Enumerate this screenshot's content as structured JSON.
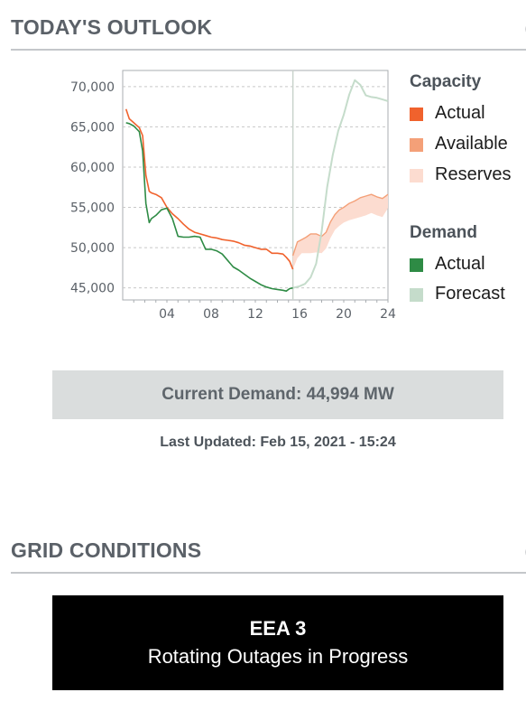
{
  "outlook": {
    "title": "TODAY'S OUTLOOK",
    "current_demand": "Current Demand: 44,994 MW",
    "last_updated": "Last Updated: Feb 15, 2021 - 15:24"
  },
  "grid": {
    "title": "GRID CONDITIONS",
    "level": "EEA 3",
    "status": "Rotating Outages in Progress"
  },
  "legend": {
    "capacity_heading": "Capacity",
    "demand_heading": "Demand",
    "items": [
      {
        "label": "Actual",
        "color": "#f0622d"
      },
      {
        "label": "Available",
        "color": "#f4a078"
      },
      {
        "label": "Reserves",
        "color": "#fcdcd0"
      },
      {
        "label": "Actual",
        "color": "#2e8b45"
      },
      {
        "label": "Forecast",
        "color": "#c5dccb"
      }
    ]
  },
  "chart_data": {
    "type": "line",
    "xlim": [
      0,
      24
    ],
    "ylim": [
      43500,
      72000
    ],
    "x_ticks": [
      4,
      8,
      12,
      16,
      20,
      24
    ],
    "x_tick_labels": [
      "04",
      "08",
      "12",
      "16",
      "20",
      "24"
    ],
    "y_ticks": [
      45000,
      50000,
      55000,
      60000,
      65000,
      70000
    ],
    "y_tick_labels": [
      "45,000",
      "50,000",
      "55,000",
      "60,000",
      "65,000",
      "70,000"
    ],
    "grid": "horizontal dashed",
    "current_hour": 15.4,
    "series": [
      {
        "key": "capacity_actual",
        "color": "#f0622d",
        "x": [
          0.3,
          0.6,
          1.0,
          1.5,
          1.8,
          2.1,
          2.4,
          2.6,
          3.0,
          3.5,
          4.0,
          4.5,
          5.0,
          5.5,
          6.0,
          6.5,
          7.0,
          7.5,
          8.0,
          8.5,
          9.0,
          9.5,
          10.0,
          10.5,
          11.0,
          11.5,
          12.0,
          12.5,
          13.0,
          13.5,
          14.0,
          14.5,
          14.8,
          15.1,
          15.4
        ],
        "values": [
          67200,
          66000,
          65500,
          64900,
          63900,
          59000,
          57000,
          56800,
          56600,
          56200,
          55000,
          54200,
          53600,
          52900,
          52300,
          51900,
          51700,
          51500,
          51300,
          51200,
          51000,
          50900,
          50800,
          50600,
          50300,
          50200,
          50000,
          49800,
          49800,
          49300,
          49300,
          49200,
          48800,
          48300,
          47300
        ]
      },
      {
        "key": "demand_actual",
        "color": "#2e8b45",
        "x": [
          0.3,
          0.6,
          1.0,
          1.5,
          1.8,
          2.1,
          2.4,
          2.6,
          3.0,
          3.5,
          4.0,
          4.5,
          5.0,
          5.5,
          6.0,
          6.5,
          7.0,
          7.5,
          8.0,
          8.5,
          9.0,
          9.5,
          10.0,
          10.5,
          11.0,
          11.5,
          12.0,
          12.5,
          13.0,
          13.5,
          14.0,
          14.5,
          14.8,
          15.1,
          15.4
        ],
        "values": [
          65500,
          65400,
          65100,
          64400,
          62000,
          55500,
          53100,
          53600,
          54000,
          54700,
          54900,
          53600,
          51400,
          51300,
          51300,
          51400,
          51300,
          49800,
          49800,
          49600,
          49200,
          48400,
          47600,
          47200,
          46700,
          46200,
          45800,
          45400,
          45100,
          44900,
          44800,
          44700,
          44600,
          44900,
          44994
        ]
      },
      {
        "key": "demand_forecast",
        "color": "#c5dccb",
        "x": [
          15.4,
          16.0,
          16.5,
          17.0,
          17.5,
          18.0,
          18.5,
          19.0,
          19.5,
          20.0,
          20.5,
          21.0,
          21.5,
          22.0,
          22.5,
          23.0,
          23.5,
          24.0
        ],
        "values": [
          44994,
          45200,
          45500,
          46300,
          48000,
          52000,
          57500,
          61500,
          64500,
          66500,
          69000,
          70800,
          70200,
          68900,
          68700,
          68600,
          68400,
          68200
        ]
      },
      {
        "key": "capacity_available",
        "color": "#f4a078",
        "x": [
          15.4,
          15.8,
          16.2,
          16.6,
          17.0,
          17.5,
          18.0,
          18.4,
          18.8,
          19.2,
          19.6,
          20.0,
          20.5,
          21.0,
          21.5,
          22.0,
          22.5,
          23.0,
          23.5,
          24.0
        ],
        "values": [
          49000,
          50700,
          51000,
          51300,
          51700,
          51700,
          51400,
          51900,
          53200,
          54100,
          54700,
          55000,
          55500,
          55800,
          56200,
          56400,
          56600,
          56300,
          56100,
          56600
        ]
      },
      {
        "key": "reserves_low",
        "color": "#fcdcd0",
        "x": [
          15.4,
          15.8,
          16.2,
          16.6,
          17.0,
          17.5,
          18.0,
          18.4,
          18.8,
          19.2,
          19.6,
          20.0,
          20.5,
          21.0,
          21.5,
          22.0,
          22.5,
          23.0,
          23.5,
          24.0
        ],
        "values": [
          47300,
          48700,
          49300,
          49300,
          49300,
          49400,
          49300,
          49900,
          51200,
          52200,
          52700,
          53100,
          53400,
          53600,
          53800,
          54000,
          54300,
          54000,
          53800,
          54900
        ]
      }
    ]
  }
}
